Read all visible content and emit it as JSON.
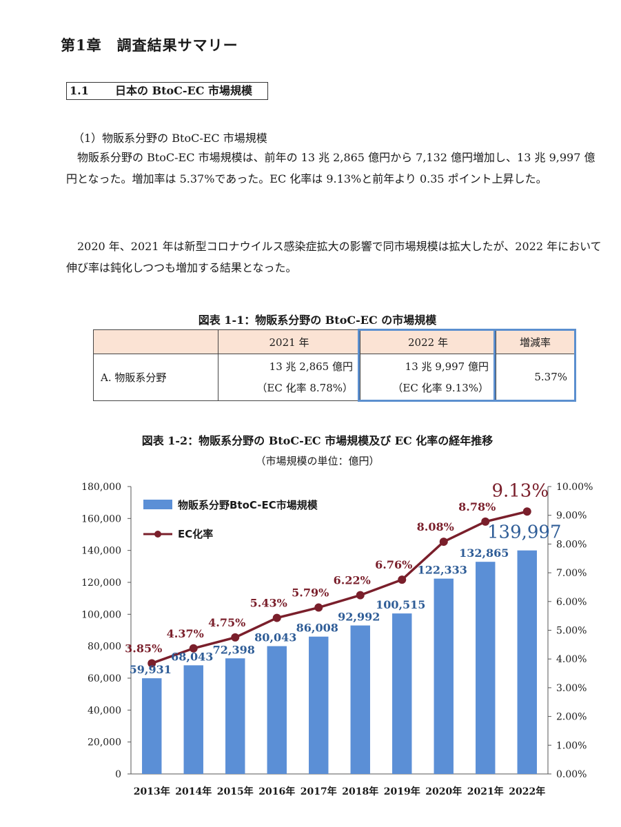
{
  "chapter_title": "第1章　調査結果サマリー",
  "section": {
    "number": "1.1",
    "title": "日本の BtoC-EC 市場規模"
  },
  "subsection": "（1）物販系分野の BtoC-EC 市場規模",
  "paragraph1": "物販系分野の BtoC-EC 市場規模は、前年の 13 兆 2,865 億円から 7,132 億円増加し、13 兆 9,997 億円となった。増加率は 5.37%であった。EC 化率は 9.13%と前年より 0.35 ポイント上昇した。",
  "paragraph2": "2020 年、2021 年は新型コロナウイルス感染症拡大の影響で同市場規模は拡大したが、2022 年において伸び率は鈍化しつつも増加する結果となった。",
  "table_caption": "図表 1-1：物販系分野の BtoC-EC の市場規模",
  "table": {
    "headers": [
      "",
      "2021 年",
      "2022 年",
      "増減率"
    ],
    "row": {
      "label": "A.  物販系分野",
      "y2021_amount": "13 兆 2,865 億円",
      "y2021_rate": "（EC 化率  8.78%）",
      "y2022_amount": "13 兆 9,997 億円",
      "y2022_rate": "（EC 化率  9.13%）",
      "change": "5.37%"
    }
  },
  "chart_caption": "図表 1-2：物販系分野の BtoC-EC 市場規模及び EC 化率の経年推移",
  "chart_unit_note": "（市場規模の単位：億円）",
  "chart_data": {
    "type": "bar",
    "categories": [
      "2013年",
      "2014年",
      "2015年",
      "2016年",
      "2017年",
      "2018年",
      "2019年",
      "2020年",
      "2021年",
      "2022年"
    ],
    "series": [
      {
        "name": "物販系分野BtoC-EC市場規模",
        "type": "bar",
        "axis": "left",
        "values": [
          59931,
          68043,
          72398,
          80043,
          86008,
          92992,
          100515,
          122333,
          132865,
          139997
        ],
        "labels": [
          "59,931",
          "68,043",
          "72,398",
          "80,043",
          "86,008",
          "92,992",
          "100,515",
          "122,333",
          "132,865",
          "139,997"
        ],
        "color": "#5b8fd6"
      },
      {
        "name": "EC化率",
        "type": "line",
        "axis": "right",
        "values": [
          3.85,
          4.37,
          4.75,
          5.43,
          5.79,
          6.22,
          6.76,
          8.08,
          8.78,
          9.13
        ],
        "labels": [
          "3.85%",
          "4.37%",
          "4.75%",
          "5.43%",
          "5.79%",
          "6.22%",
          "6.76%",
          "8.08%",
          "8.78%",
          "9.13%"
        ],
        "color": "#7a1f2b"
      }
    ],
    "y_left": {
      "min": 0,
      "max": 180000,
      "ticks": [
        "0",
        "20,000",
        "40,000",
        "60,000",
        "80,000",
        "100,000",
        "120,000",
        "140,000",
        "160,000",
        "180,000"
      ]
    },
    "y_right": {
      "min": 0,
      "max": 10,
      "ticks": [
        "0.00%",
        "1.00%",
        "2.00%",
        "3.00%",
        "4.00%",
        "5.00%",
        "6.00%",
        "7.00%",
        "8.00%",
        "9.00%",
        "10.00%"
      ]
    },
    "legend_position": "top-left",
    "grid": false,
    "colors": {
      "bar_label": "#2f5d97",
      "line_label": "#7a1f2b",
      "highlight_bar_label": "#2f5d97"
    }
  }
}
